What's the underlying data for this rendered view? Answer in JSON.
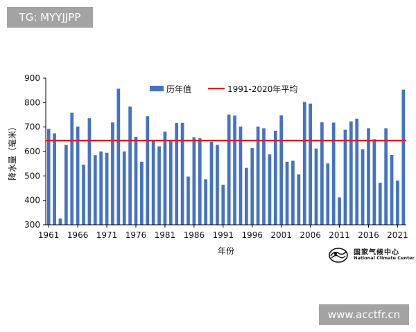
{
  "watermarks": {
    "top_left": "TG: MYYJJPP",
    "bottom_right": "www.acctfr.cn"
  },
  "logo": {
    "cn": "国家气候中心",
    "en": "National Climate Center"
  },
  "colors": {
    "bar": "#4472C4",
    "average_line": "#E8141B",
    "watermark_bg": "#a3a3a3"
  },
  "chart_data": {
    "type": "bar",
    "title": "",
    "xlabel": "年份",
    "ylabel": "降水量（毫米）",
    "ylim": [
      300,
      900
    ],
    "yticks": [
      300,
      400,
      500,
      600,
      700,
      800,
      900
    ],
    "xtick_labels": [
      "1961",
      "1966",
      "1971",
      "1976",
      "1981",
      "1986",
      "1991",
      "1996",
      "2001",
      "2006",
      "2011",
      "2016",
      "2021"
    ],
    "legend_position": "top",
    "series": [
      {
        "name": "历年值",
        "type": "bar",
        "categories": [
          1961,
          1962,
          1963,
          1964,
          1965,
          1966,
          1967,
          1968,
          1969,
          1970,
          1971,
          1972,
          1973,
          1974,
          1975,
          1976,
          1977,
          1978,
          1979,
          1980,
          1981,
          1982,
          1983,
          1984,
          1985,
          1986,
          1987,
          1988,
          1989,
          1990,
          1991,
          1992,
          1993,
          1994,
          1995,
          1996,
          1997,
          1998,
          1999,
          2000,
          2001,
          2002,
          2003,
          2004,
          2005,
          2006,
          2007,
          2008,
          2009,
          2010,
          2011,
          2012,
          2013,
          2014,
          2015,
          2016,
          2017,
          2018,
          2019,
          2020,
          2021,
          2022
        ],
        "values": [
          693,
          674,
          326,
          627,
          759,
          702,
          546,
          736,
          585,
          600,
          595,
          719,
          857,
          600,
          784,
          660,
          558,
          744,
          643,
          621,
          681,
          642,
          716,
          717,
          497,
          658,
          654,
          486,
          640,
          627,
          464,
          751,
          747,
          702,
          533,
          614,
          702,
          695,
          588,
          685,
          748,
          558,
          562,
          506,
          803,
          796,
          612,
          720,
          551,
          718,
          412,
          689,
          723,
          734,
          609,
          695,
          650,
          472,
          695,
          586,
          481,
          853
        ]
      },
      {
        "name": "1991-2020年平均",
        "type": "line",
        "value": 645
      }
    ]
  }
}
